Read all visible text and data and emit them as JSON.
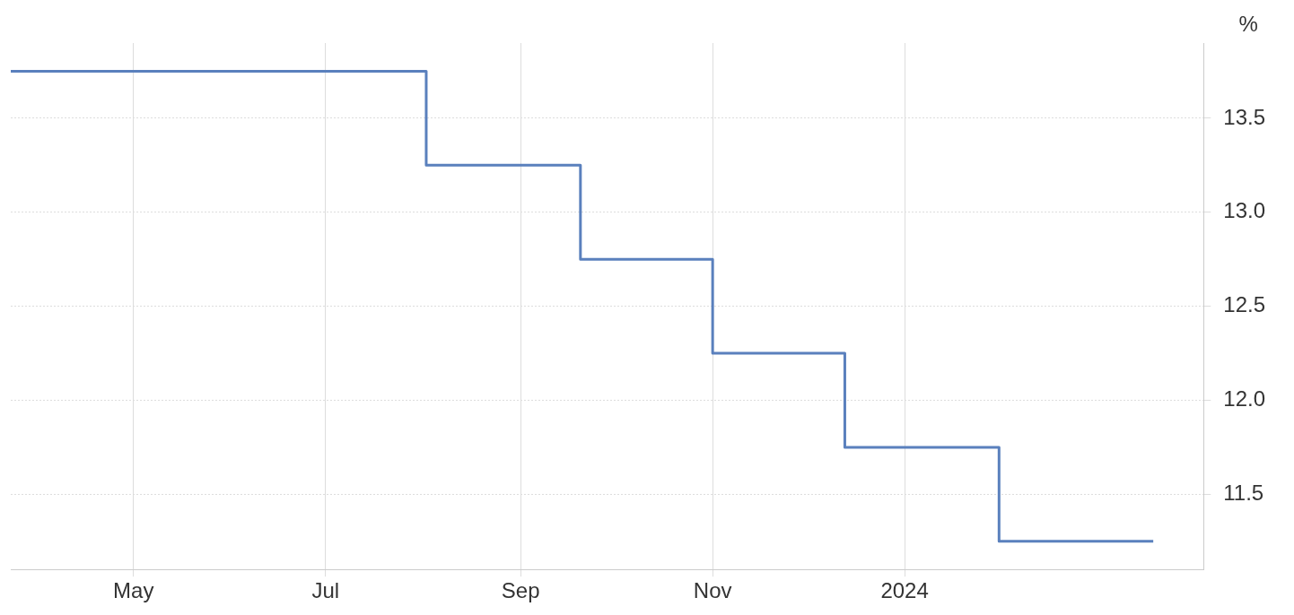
{
  "chart_data": {
    "type": "step",
    "ylabel": "%",
    "x": [
      "2023-03-23",
      "2023-08-02",
      "2023-09-20",
      "2023-11-01",
      "2023-12-13",
      "2024-01-31",
      "2024-03-20"
    ],
    "series": [
      {
        "color": "#5a80bd",
        "values": [
          13.75,
          13.25,
          12.75,
          12.25,
          11.75,
          11.25,
          11.25
        ]
      }
    ],
    "xlim": [
      "2023-03-23",
      "2024-04-05"
    ],
    "xticks": [
      {
        "value": "2023-05-01",
        "label": "May"
      },
      {
        "value": "2023-07-01",
        "label": "Jul"
      },
      {
        "value": "2023-09-01",
        "label": "Sep"
      },
      {
        "value": "2023-11-01",
        "label": "Nov"
      },
      {
        "value": "2024-01-01",
        "label": "2024"
      }
    ],
    "ylim": [
      11.1,
      13.9
    ],
    "yticks": [
      {
        "value": 11.5,
        "label": "11.5"
      },
      {
        "value": 12,
        "label": "12.0"
      },
      {
        "value": 12.5,
        "label": "12.5"
      },
      {
        "value": 13,
        "label": "13.0"
      },
      {
        "value": 13.5,
        "label": "13.5"
      }
    ],
    "grid": true,
    "legend": false,
    "line_style": "solid",
    "marker": "none"
  }
}
